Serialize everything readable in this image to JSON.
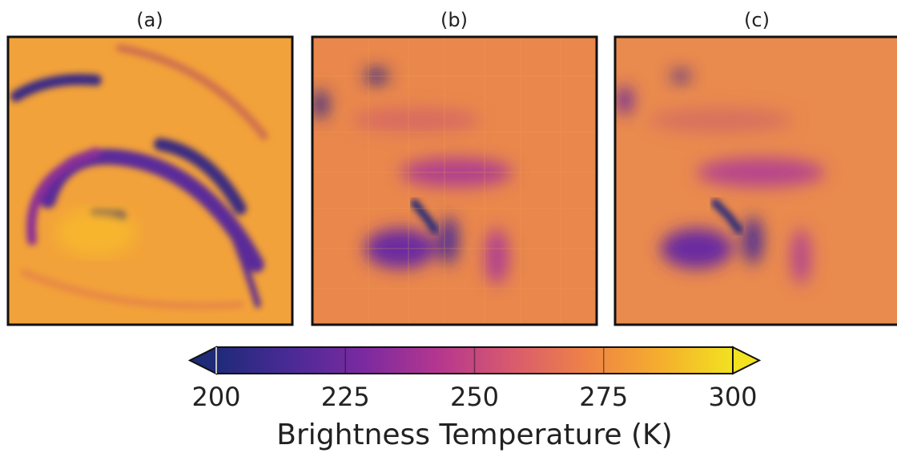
{
  "chart_data": {
    "type": "heatmap",
    "panels": [
      {
        "title": "(a)"
      },
      {
        "title": "(b)"
      },
      {
        "title": "(c)"
      }
    ],
    "colorbar": {
      "label": "Brightness Temperature (K)",
      "clim": [
        200,
        300
      ],
      "ticks": [
        200,
        225,
        250,
        275,
        300
      ],
      "extend": "both",
      "colors": [
        "#1f2a78",
        "#4a2a96",
        "#7b2aa0",
        "#b4368f",
        "#d85a6e",
        "#ee8247",
        "#f5ad2e",
        "#f2e21f"
      ]
    }
  }
}
